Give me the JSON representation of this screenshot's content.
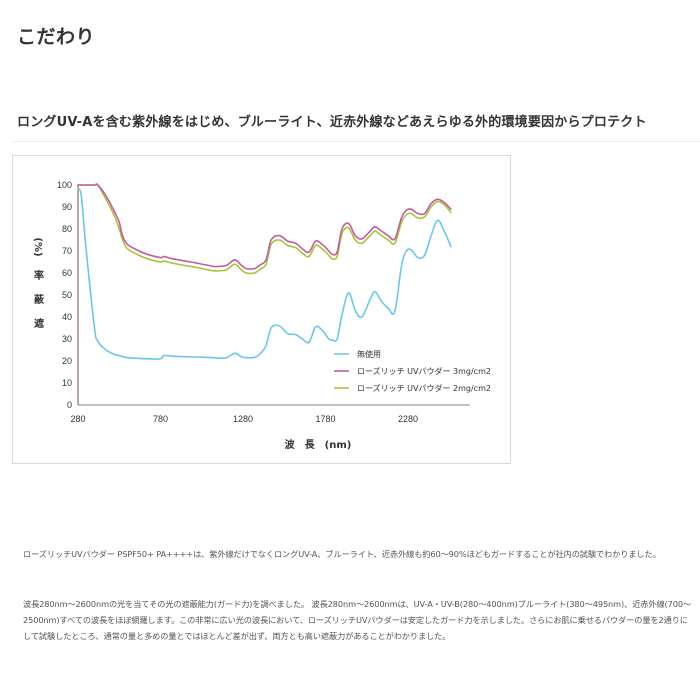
{
  "page": {
    "title": "こだわり",
    "section_heading": "ロングUV-Aを含む紫外線をはじめ、ブルーライト、近赤外線などあえらゆる外的環境要因からプロテクト",
    "paragraphs": [
      "ローズリッチUVパウダー PSPF50+ PA++++は、紫外線だけでなくロングUV-A、ブルーライト、近赤外線も約60〜90%ほどもガードすることが社内の試験でわかりました。",
      "波長280nm〜2600nmの光を当てその光の遮蔽能力(ガード力)を調べました。 波長280nm〜2600nmは、UV-A・UV-B(280〜400nm)ブルーライト(380〜495nm)、近赤外線(700〜2500nm)すべての波長をほぼ網羅します。この非常に広い光の波長において、ローズリッチUVパウダーは安定したガード力を示しました。さらにお肌に乗せるパウダーの量を2通りにして試験したところ、通常の量と多めの量とではほとんど差が出ず、両方とも高い遮蔽力があることがわかりました。"
    ]
  },
  "chart_data": {
    "type": "line",
    "title": "",
    "xlabel": "波　長　(nm)",
    "ylabel": "遮　蔽　率　(%)",
    "xlim": [
      280,
      2600
    ],
    "ylim": [
      0,
      100
    ],
    "x_ticks": [
      "280",
      "780",
      "1280",
      "1780",
      "2280"
    ],
    "y_ticks": [
      "0",
      "10",
      "20",
      "30",
      "40",
      "50",
      "60",
      "70",
      "80",
      "90",
      "100"
    ],
    "grid": false,
    "legend_position": "lower right",
    "x": [
      280,
      300,
      330,
      380,
      400,
      450,
      500,
      530,
      550,
      580,
      650,
      700,
      780,
      800,
      850,
      900,
      1000,
      1100,
      1130,
      1180,
      1230,
      1270,
      1300,
      1350,
      1380,
      1420,
      1450,
      1500,
      1550,
      1600,
      1640,
      1680,
      1720,
      1760,
      1800,
      1820,
      1850,
      1880,
      1920,
      1960,
      2000,
      2050,
      2080,
      2120,
      2160,
      2200,
      2240,
      2270,
      2300,
      2340,
      2380,
      2420,
      2460,
      2500,
      2540
    ],
    "series": [
      {
        "name": "無使用",
        "color": "#6ec6e6",
        "values": [
          98,
          95,
          70,
          35,
          29,
          25,
          23,
          22.5,
          22,
          21.5,
          21.2,
          21,
          21,
          22.5,
          22.2,
          22,
          21.8,
          21.5,
          21.3,
          21.5,
          23.5,
          22,
          21.5,
          21.7,
          23,
          27,
          35,
          36,
          32.5,
          32,
          30,
          28.5,
          35.5,
          34,
          30,
          29.5,
          30,
          41,
          51,
          43,
          40,
          48,
          51.5,
          47,
          44,
          42.5,
          63,
          70,
          70.5,
          67,
          68,
          77,
          84,
          79,
          72
        ]
      },
      {
        "name": "ローズリッチ UVパウダー 3mg/cm2",
        "color": "#c45b9e",
        "values": [
          100,
          100,
          100,
          100,
          100,
          95,
          88,
          83,
          77,
          73,
          70,
          68.5,
          67,
          67.5,
          66.5,
          65.8,
          64.5,
          63,
          63,
          63.5,
          66,
          63.5,
          62,
          62,
          63.5,
          66,
          75,
          77,
          74.5,
          73.5,
          71,
          69.5,
          74.5,
          73,
          70,
          68.5,
          69.5,
          80,
          82.5,
          77,
          75.5,
          79,
          81,
          79,
          77,
          75.5,
          85,
          88.5,
          89,
          87,
          87,
          91.5,
          93.5,
          92,
          89
        ]
      },
      {
        "name": "ローズリッチ UVパウダー 2mg/cm2",
        "color": "#a8c43a",
        "values": [
          100,
          100,
          100,
          100,
          100,
          93.5,
          86,
          80,
          75,
          71,
          68,
          66.5,
          65,
          65.5,
          64.5,
          63.8,
          62.5,
          61,
          61,
          61.5,
          64,
          61.5,
          60,
          60,
          61.5,
          64,
          73,
          75,
          72.5,
          71.5,
          69,
          67.5,
          72.5,
          71,
          68,
          66.5,
          67.5,
          78,
          80.5,
          75,
          73.5,
          77,
          79,
          77,
          75,
          73.5,
          83,
          86.5,
          87,
          85,
          85.5,
          90,
          92.5,
          91,
          87.5
        ]
      }
    ]
  },
  "legend": {
    "items": [
      {
        "label": "無使用",
        "color": "#6ec6e6"
      },
      {
        "label": "ローズリッチ UVパウダー 3mg/cm2",
        "color": "#c45b9e"
      },
      {
        "label": "ローズリッチ UVパウダー 2mg/cm2",
        "color": "#a8c43a"
      }
    ]
  },
  "axes": {
    "x_title": "波　長　(nm)",
    "y_title_chars": [
      "遮",
      "蔽",
      "率",
      "(%)"
    ],
    "axis_color": "#8a6f6f"
  }
}
